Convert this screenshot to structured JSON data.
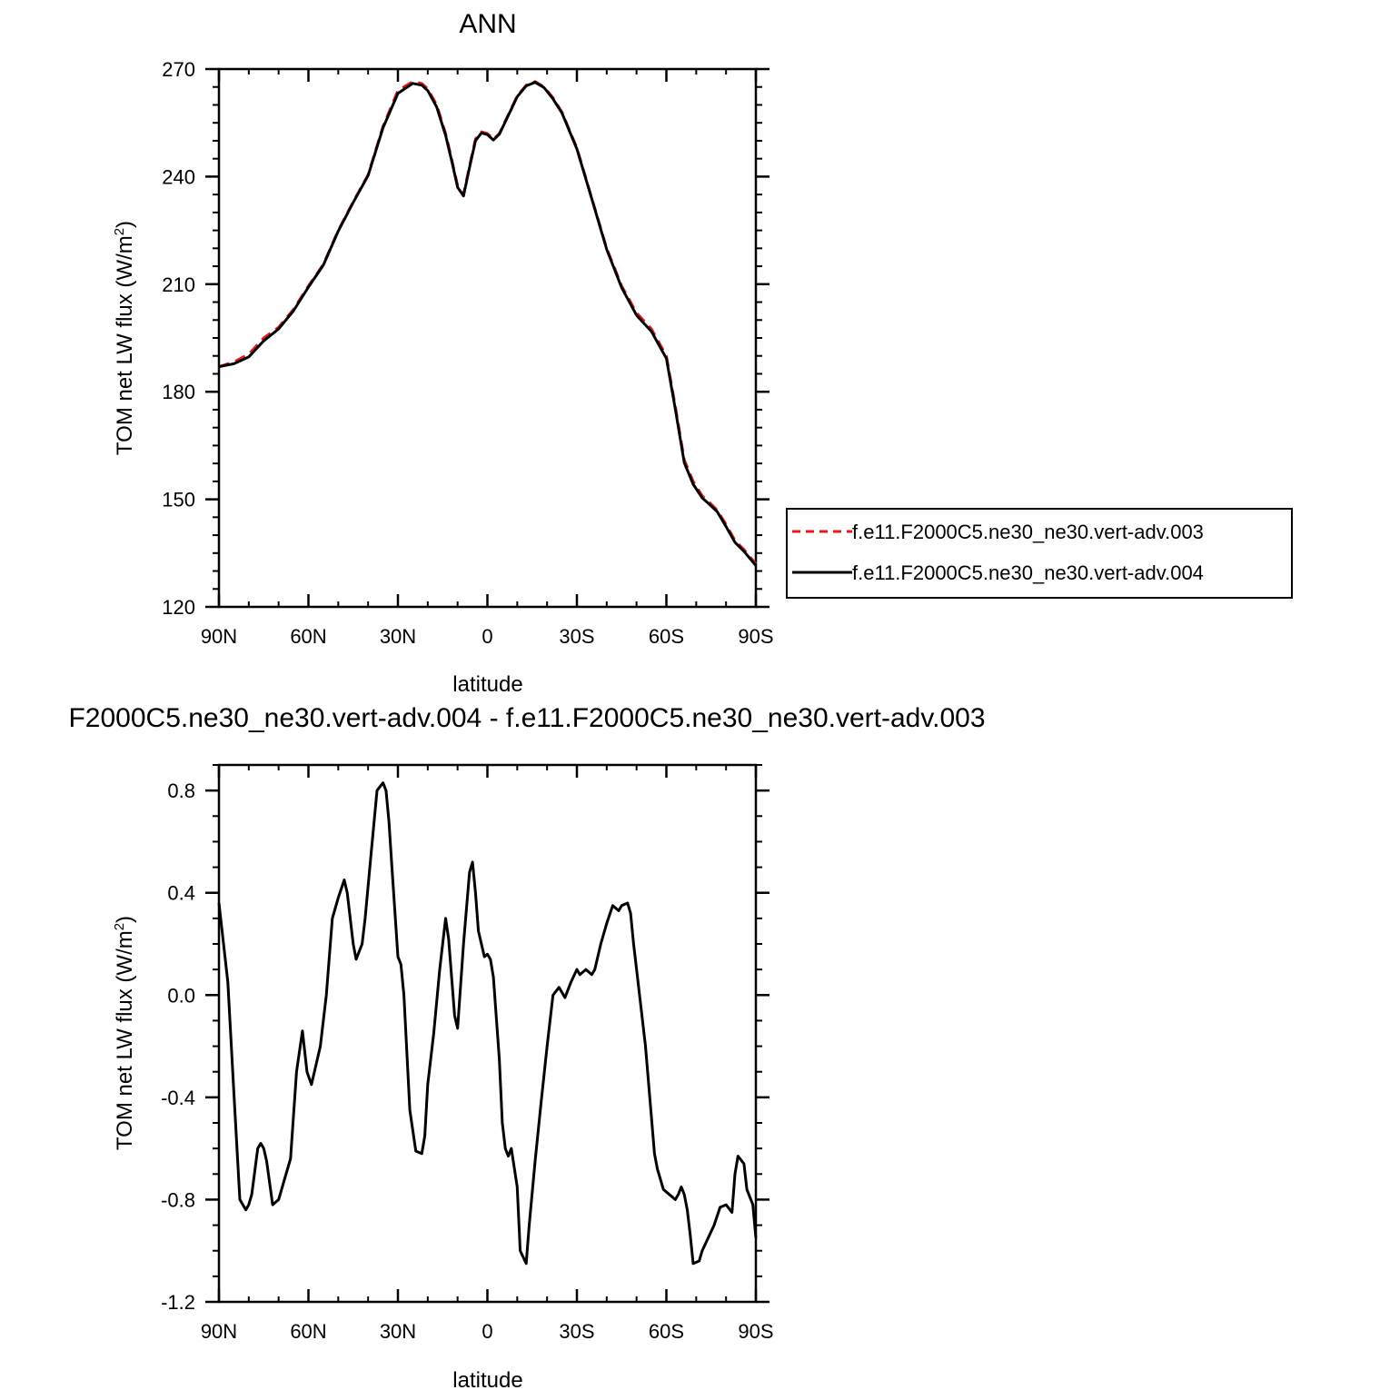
{
  "chart_data": [
    {
      "type": "line",
      "title": "ANN",
      "xlabel": "latitude",
      "ylabel": "TOM net LW flux (W/m",
      "ylabel_sup": "2",
      "ylabel_end": ")",
      "xlim": [
        90,
        -90
      ],
      "ylim": [
        120,
        270
      ],
      "xticks": [
        90,
        60,
        30,
        0,
        -30,
        -60,
        -90
      ],
      "xticklabels": [
        "90N",
        "60N",
        "30N",
        "0",
        "30S",
        "60S",
        "90S"
      ],
      "yticks": [
        120,
        150,
        180,
        210,
        240,
        270
      ],
      "yticklabels": [
        "120",
        "150",
        "180",
        "210",
        "240",
        "270"
      ],
      "grid": false,
      "legend_position": "right",
      "series": [
        {
          "name": "f.e11.F2000C5.ne30_ne30.vert-adv.003",
          "color": "#e41a1c",
          "dash": "dashed",
          "x": [
            90,
            85,
            80,
            75,
            70,
            65,
            60,
            55,
            50,
            45,
            40,
            35,
            30,
            25,
            22,
            20,
            17,
            14,
            12,
            10,
            8,
            6,
            4,
            2,
            0,
            -2,
            -4,
            -6,
            -8,
            -10,
            -13,
            -16,
            -19,
            -22,
            -25,
            -30,
            -35,
            -40,
            -45,
            -50,
            -55,
            -60,
            -63,
            -66,
            -69,
            -72,
            -74,
            -77,
            -80,
            -83,
            -86,
            -90
          ],
          "y": [
            187,
            188.3,
            190.5,
            195,
            198,
            203,
            209.5,
            215.5,
            225,
            233,
            240.5,
            254,
            264,
            266.5,
            266,
            264.5,
            260,
            252,
            245,
            237.5,
            235,
            243,
            250.5,
            252.5,
            252,
            250.5,
            252,
            255.5,
            259,
            262.5,
            265.5,
            266.5,
            265,
            262,
            258,
            248,
            234,
            220,
            209.5,
            202,
            197.5,
            190,
            176,
            161,
            155,
            151,
            149.5,
            147,
            143,
            138.5,
            136,
            132
          ]
        },
        {
          "name": "f.e11.F2000C5.ne30_ne30.vert-adv.004",
          "color": "#000000",
          "dash": "solid",
          "x": [
            90,
            85,
            80,
            75,
            70,
            65,
            60,
            55,
            50,
            45,
            40,
            35,
            30,
            25,
            22,
            20,
            17,
            14,
            12,
            10,
            8,
            6,
            4,
            2,
            0,
            -2,
            -4,
            -6,
            -8,
            -10,
            -13,
            -16,
            -19,
            -22,
            -25,
            -30,
            -35,
            -40,
            -45,
            -50,
            -55,
            -60,
            -63,
            -66,
            -69,
            -72,
            -74,
            -77,
            -80,
            -83,
            -86,
            -90
          ],
          "y": [
            187,
            187.8,
            189.7,
            194.2,
            197.5,
            202.6,
            209.2,
            215.3,
            224.8,
            232.8,
            240.3,
            253.6,
            263.2,
            266,
            265.5,
            264,
            259.4,
            251.5,
            244.5,
            237,
            234.6,
            242.5,
            250,
            252.2,
            251.7,
            250.2,
            251.8,
            255.3,
            258.8,
            262.3,
            265.3,
            266.3,
            264.8,
            261.7,
            257.7,
            247.7,
            233.8,
            219.7,
            209,
            201.3,
            196.8,
            189.3,
            175.2,
            160.2,
            154.2,
            150.4,
            148.9,
            146.6,
            142.4,
            138,
            135.5,
            131.5
          ]
        }
      ]
    },
    {
      "type": "line",
      "title": "F2000C5.ne30_ne30.vert-adv.004 - f.e11.F2000C5.ne30_ne30.vert-adv.003",
      "xlabel": "latitude",
      "ylabel": "TOM net LW flux (W/m",
      "ylabel_sup": "2",
      "ylabel_end": ")",
      "xlim": [
        90,
        -90
      ],
      "ylim": [
        -1.2,
        0.9
      ],
      "xticks": [
        90,
        60,
        30,
        0,
        -30,
        -60,
        -90
      ],
      "xticklabels": [
        "90N",
        "60N",
        "30N",
        "0",
        "30S",
        "60S",
        "90S"
      ],
      "yticks": [
        -1.2,
        -0.8,
        -0.4,
        0.0,
        0.4,
        0.8
      ],
      "yticklabels": [
        "-1.2",
        "-0.8",
        "-0.4",
        "0.0",
        "0.4",
        "0.8"
      ],
      "grid": false,
      "series": [
        {
          "color": "#000000",
          "x": [
            90,
            87,
            85,
            83,
            81,
            80,
            79,
            77,
            76,
            75,
            74,
            72,
            70,
            68,
            66,
            64,
            62,
            60.5,
            59,
            58,
            56,
            54,
            52,
            50,
            48,
            47,
            45,
            44,
            42,
            41,
            39,
            37,
            35,
            34,
            33,
            32,
            30,
            29,
            28,
            26,
            24,
            22,
            21,
            20,
            18,
            16,
            14,
            13,
            11,
            10,
            8,
            6,
            5,
            4,
            3,
            2,
            1,
            0,
            -1,
            -2,
            -4,
            -5,
            -6,
            -7,
            -8,
            -10,
            -11,
            -13,
            -14,
            -16,
            -18,
            -20,
            -22,
            -24,
            -26,
            -28,
            -30,
            -31,
            -33,
            -35,
            -36,
            -38,
            -40,
            -42,
            -44,
            -45,
            -47,
            -48,
            -49,
            -50,
            -53,
            -56,
            -57,
            -58,
            -59,
            -61,
            -63,
            -64,
            -65,
            -66,
            -67,
            -68,
            -69,
            -71,
            -72,
            -74,
            -76,
            -78,
            -80,
            -82,
            -83,
            -84,
            -86,
            -87,
            -89,
            -90
          ],
          "y": [
            0.36,
            0.05,
            -0.38,
            -0.8,
            -0.84,
            -0.82,
            -0.78,
            -0.6,
            -0.58,
            -0.6,
            -0.65,
            -0.82,
            -0.8,
            -0.72,
            -0.64,
            -0.3,
            -0.14,
            -0.3,
            -0.35,
            -0.3,
            -0.2,
            0.0,
            0.3,
            0.38,
            0.45,
            0.4,
            0.2,
            0.14,
            0.2,
            0.3,
            0.55,
            0.8,
            0.83,
            0.8,
            0.68,
            0.5,
            0.15,
            0.12,
            0.0,
            -0.45,
            -0.61,
            -0.62,
            -0.55,
            -0.35,
            -0.15,
            0.1,
            0.3,
            0.22,
            -0.08,
            -0.13,
            0.2,
            0.48,
            0.52,
            0.4,
            0.25,
            0.2,
            0.15,
            0.16,
            0.14,
            0.07,
            -0.25,
            -0.5,
            -0.6,
            -0.63,
            -0.6,
            -0.75,
            -1.0,
            -1.05,
            -0.9,
            -0.65,
            -0.42,
            -0.2,
            0.0,
            0.03,
            -0.01,
            0.05,
            0.1,
            0.08,
            0.1,
            0.08,
            0.1,
            0.2,
            0.28,
            0.35,
            0.33,
            0.35,
            0.36,
            0.32,
            0.2,
            0.1,
            -0.2,
            -0.62,
            -0.68,
            -0.72,
            -0.76,
            -0.78,
            -0.8,
            -0.78,
            -0.75,
            -0.78,
            -0.84,
            -0.94,
            -1.05,
            -1.04,
            -1.0,
            -0.95,
            -0.9,
            -0.83,
            -0.82,
            -0.85,
            -0.7,
            -0.63,
            -0.66,
            -0.76,
            -0.82,
            -0.95
          ]
        }
      ]
    }
  ]
}
